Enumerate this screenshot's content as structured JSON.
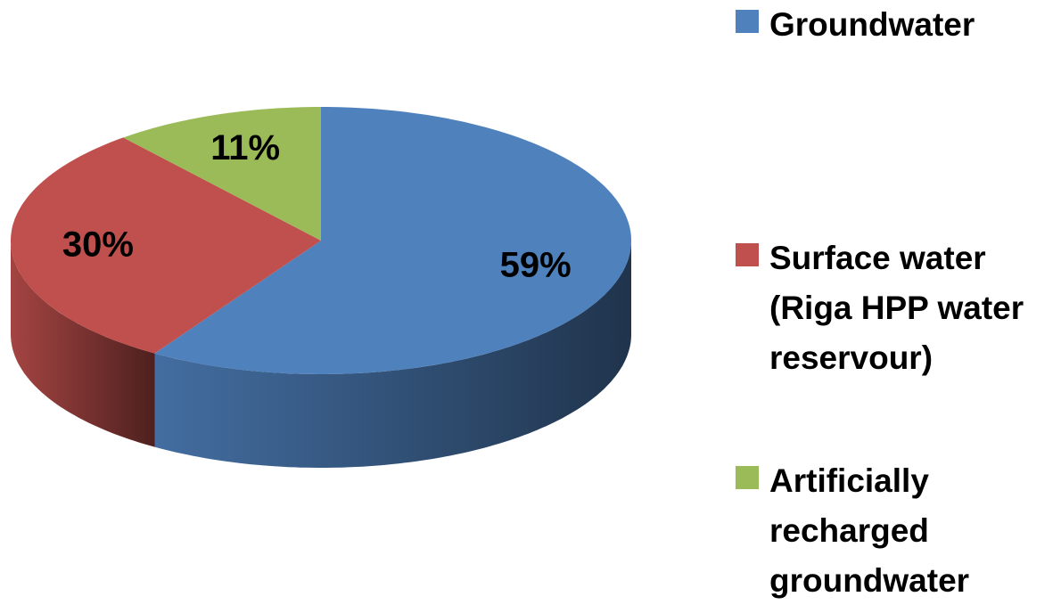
{
  "chart_data": {
    "type": "pie",
    "categories": [
      "Groundwater",
      "Surface water (Riga HPP water reservour)",
      "Artificially recharged groundwater"
    ],
    "values": [
      59,
      30,
      11
    ],
    "value_labels": [
      "59%",
      "30%",
      "11%"
    ],
    "colors": [
      "#4f81bd",
      "#c0504d",
      "#9bbb59"
    ],
    "legend": "right"
  }
}
